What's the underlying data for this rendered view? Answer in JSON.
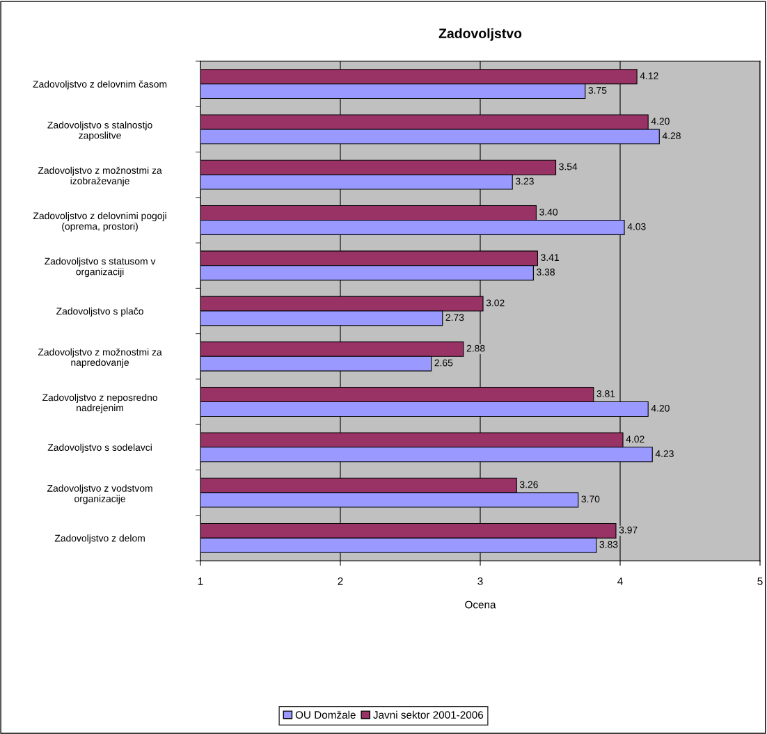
{
  "chart_data": {
    "type": "bar",
    "orientation": "horizontal",
    "title": "Zadovoljstvo",
    "xlabel": "Ocena",
    "categories": [
      "Zadovoljstvo z delovnim časom",
      "Zadovoljstvo s stalnostjo\nzaposlitve",
      "Zadovoljstvo z možnostmi za\nizobraževanje",
      "Zadovoljstvo z delovnimi pogoji\n(oprema, prostori)",
      "Zadovoljstvo s statusom v\norganizaciji",
      "Zadovoljstvo s plačo",
      "Zadovoljstvo z možnostmi za\nnapredovanje",
      "Zadovoljstvo z neposredno\nnadrejenim",
      "Zadovoljstvo s sodelavci",
      "Zadovoljstvo z vodstvom\norganizacije",
      "Zadovoljstvo z delom"
    ],
    "series": [
      {
        "name": "Javni sektor 2001-2006",
        "color": "#993366",
        "values": [
          4.12,
          4.2,
          3.54,
          3.4,
          3.41,
          3.02,
          2.88,
          3.81,
          4.02,
          3.26,
          3.97
        ],
        "value_labels": [
          "4.12",
          "4.20",
          "3.54",
          "3.40",
          "3.41",
          "3.02",
          "2.88",
          "3.81",
          "4.02",
          "3.26",
          "3.97"
        ]
      },
      {
        "name": "OU Domžale",
        "color": "#9999ff",
        "values": [
          3.75,
          4.28,
          3.23,
          4.03,
          3.38,
          2.73,
          2.65,
          4.2,
          4.23,
          3.7,
          3.83
        ],
        "value_labels": [
          "3.75",
          "4.28",
          "3.23",
          "4.03",
          "3.38",
          "2.73",
          "2.65",
          "4.20",
          "4.23",
          "3.70",
          "3.83"
        ]
      }
    ],
    "xlim": [
      1,
      5
    ],
    "xticks": [
      1,
      2,
      3,
      4,
      5
    ],
    "grid": "x",
    "legend": "bottom"
  }
}
